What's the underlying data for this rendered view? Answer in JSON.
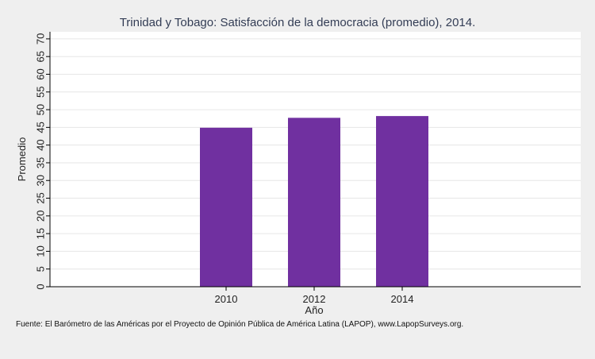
{
  "chart_data": {
    "type": "bar",
    "title": "Trinidad y Tobago: Satisfacción de la democracia (promedio), 2014.",
    "xlabel": "Año",
    "ylabel": "Promedio",
    "categories": [
      "2010",
      "2012",
      "2014"
    ],
    "values": [
      44.9,
      47.7,
      48.2
    ],
    "ylim": [
      0,
      72
    ],
    "yticks": [
      0,
      5,
      10,
      15,
      20,
      25,
      30,
      35,
      40,
      45,
      50,
      55,
      60,
      65,
      70
    ],
    "bar_color": "#7030a0",
    "grid": true,
    "legend": "none",
    "source": "Fuente: El Barómetro de las Américas por el Proyecto de Opinión Pública de América Latina (LAPOP), www.LapopSurveys.org."
  },
  "colors": {
    "background": "#efefef",
    "plot_background": "#ffffff",
    "gridline": "#e6e6e6"
  }
}
